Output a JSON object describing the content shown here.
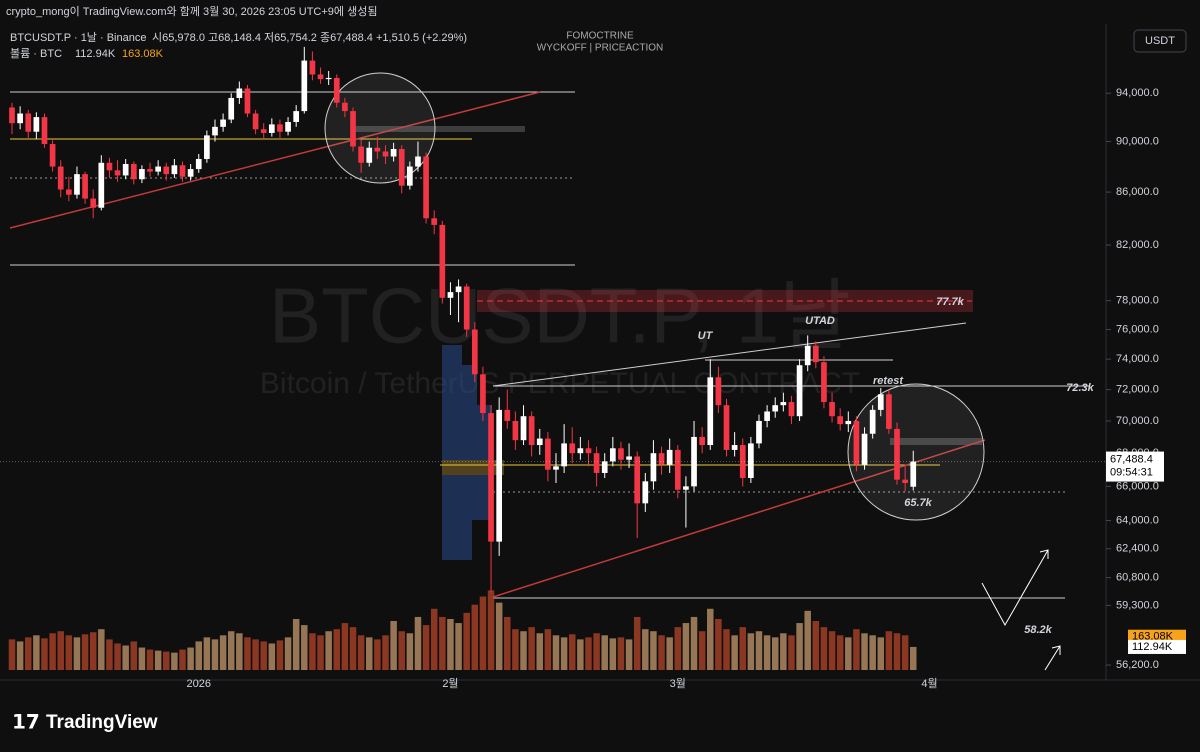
{
  "header": {
    "credit": "crypto_mong이 TradingView.com와 함께 3월 30, 2026 23:05 UTC+9에 생성됨",
    "symbol": "BTCUSDT.P · 1날 · Binance",
    "ohlc_text": "시65,978.0 고68,148.4 저65,754.2 종67,488.4 +1,510.5 (+2.29%)",
    "volume_title": "볼륨 · BTC",
    "volume_value": "112.94K",
    "volume_ma": "163.08K",
    "author_line1": "FOMOCTRINE",
    "author_line2": "WYCKOFF | PRICEACTION",
    "currency_button": "USDT"
  },
  "watermark": {
    "title": "BTCUSDT.P, 1날",
    "subtitle": "Bitcoin / TetherUS PERPETUAL CONTRACT"
  },
  "footer": {
    "logo": "TradingView"
  },
  "chart_data": {
    "type": "candlestick",
    "log_scale": true,
    "up_color": "#ffffff",
    "down_color": "#f23645",
    "volume_up_color": "#c49a6c",
    "volume_down_color": "#b5452a",
    "ylim": [
      55700,
      99500
    ],
    "xlim": [
      0,
      134
    ],
    "yticks": [
      {
        "value": 94000,
        "label": "94,000.0"
      },
      {
        "value": 90000,
        "label": "90,000.0"
      },
      {
        "value": 86000,
        "label": "86,000.0"
      },
      {
        "value": 82000,
        "label": "82,000.0"
      },
      {
        "value": 78000,
        "label": "78,000.0"
      },
      {
        "value": 76000,
        "label": "76,000.0"
      },
      {
        "value": 74000,
        "label": "74,000.0"
      },
      {
        "value": 72000,
        "label": "72,000.0"
      },
      {
        "value": 70000,
        "label": "70,000.0"
      },
      {
        "value": 68000,
        "label": "68,000.0"
      },
      {
        "value": 66000,
        "label": "66,000.0"
      },
      {
        "value": 64000,
        "label": "64,000.0"
      },
      {
        "value": 62400,
        "label": "62,400.0"
      },
      {
        "value": 60800,
        "label": "60,800.0"
      },
      {
        "value": 59300,
        "label": "59,300.0"
      },
      {
        "value": 56200,
        "label": "56,200.0"
      }
    ],
    "xticks": [
      {
        "value": 23,
        "label": "2026"
      },
      {
        "value": 54,
        "label": "2월"
      },
      {
        "value": 82,
        "label": "3월"
      },
      {
        "value": 113,
        "label": "4월"
      }
    ],
    "last_price": {
      "value": 67488.4,
      "label": "67,488.4"
    },
    "countdown": "09:54:31",
    "volume_ma_last": {
      "value": 163.08,
      "label": "163.08K"
    },
    "annotations": [
      "UT",
      "UTAD",
      "retest",
      "77.7k",
      "72.3k",
      "65.7k",
      "58.2k"
    ],
    "series": [
      {
        "name": "BTCUSDT.P",
        "values": [
          [
            92800,
            93200,
            90600,
            91500
          ],
          [
            91500,
            92900,
            91000,
            92300
          ],
          [
            92300,
            92600,
            90200,
            90800
          ],
          [
            90800,
            92400,
            90200,
            92000
          ],
          [
            92000,
            92300,
            89500,
            89800
          ],
          [
            89800,
            90100,
            87600,
            88000
          ],
          [
            88000,
            88500,
            85600,
            86200
          ],
          [
            86200,
            87200,
            85300,
            85800
          ],
          [
            85800,
            88000,
            85500,
            87400
          ],
          [
            87400,
            87600,
            85100,
            85500
          ],
          [
            85500,
            86200,
            84000,
            84800
          ],
          [
            84800,
            88900,
            84600,
            88300
          ],
          [
            88300,
            88700,
            87100,
            87700
          ],
          [
            87700,
            88500,
            86800,
            87300
          ],
          [
            87300,
            88600,
            87000,
            88200
          ],
          [
            88200,
            88400,
            86600,
            87000
          ],
          [
            87000,
            88100,
            86700,
            87800
          ],
          [
            87800,
            88300,
            87200,
            87600
          ],
          [
            87600,
            88500,
            87300,
            88000
          ],
          [
            88000,
            88300,
            86900,
            87400
          ],
          [
            87400,
            88600,
            87100,
            88100
          ],
          [
            88100,
            88400,
            86800,
            87200
          ],
          [
            87200,
            88200,
            86900,
            87800
          ],
          [
            87800,
            89000,
            87500,
            88600
          ],
          [
            88600,
            90900,
            88300,
            90500
          ],
          [
            90500,
            91800,
            90000,
            91200
          ],
          [
            91200,
            92300,
            90800,
            91800
          ],
          [
            91800,
            94000,
            91500,
            93600
          ],
          [
            93600,
            95000,
            93100,
            94400
          ],
          [
            94400,
            94700,
            92000,
            92300
          ],
          [
            92300,
            92600,
            90600,
            91000
          ],
          [
            91000,
            91500,
            90200,
            90700
          ],
          [
            90700,
            91900,
            90400,
            91400
          ],
          [
            91400,
            91800,
            90300,
            90800
          ],
          [
            90800,
            92000,
            90500,
            91600
          ],
          [
            91600,
            93000,
            91200,
            92500
          ],
          [
            92500,
            98000,
            92300,
            96800
          ],
          [
            96800,
            97600,
            95100,
            95600
          ],
          [
            95600,
            96200,
            94800,
            95200
          ],
          [
            95200,
            95900,
            94700,
            95300
          ],
          [
            95300,
            95600,
            92800,
            93200
          ],
          [
            93200,
            93600,
            92000,
            92500
          ],
          [
            92500,
            92800,
            89200,
            89600
          ],
          [
            89600,
            90200,
            87500,
            88300
          ],
          [
            88300,
            90000,
            88000,
            89500
          ],
          [
            89500,
            90400,
            88600,
            89200
          ],
          [
            89200,
            89700,
            88200,
            88800
          ],
          [
            88800,
            89900,
            88400,
            89400
          ],
          [
            89400,
            89700,
            85900,
            86500
          ],
          [
            86500,
            88400,
            86200,
            88000
          ],
          [
            88000,
            90000,
            87600,
            88800
          ],
          [
            88800,
            89100,
            83600,
            84000
          ],
          [
            84000,
            84600,
            82800,
            83500
          ],
          [
            83500,
            83800,
            77800,
            78200
          ],
          [
            78200,
            79300,
            77000,
            78600
          ],
          [
            78600,
            79500,
            76500,
            79000
          ],
          [
            79000,
            79200,
            75500,
            76000
          ],
          [
            76000,
            76500,
            72500,
            73000
          ],
          [
            73000,
            73500,
            70000,
            70500
          ],
          [
            70500,
            71000,
            60000,
            62800
          ],
          [
            62800,
            71500,
            62000,
            70700
          ],
          [
            70700,
            72000,
            69500,
            70000
          ],
          [
            70000,
            70600,
            68200,
            68800
          ],
          [
            68800,
            71000,
            68500,
            70300
          ],
          [
            70300,
            70600,
            67800,
            68500
          ],
          [
            68500,
            69500,
            67900,
            68900
          ],
          [
            68900,
            69300,
            66300,
            67000
          ],
          [
            67000,
            68000,
            66200,
            67200
          ],
          [
            67200,
            69800,
            66800,
            68600
          ],
          [
            68600,
            69600,
            67400,
            68000
          ],
          [
            68000,
            69000,
            67600,
            68300
          ],
          [
            68300,
            68800,
            67200,
            68000
          ],
          [
            68000,
            68400,
            66000,
            66800
          ],
          [
            66800,
            68000,
            66500,
            67500
          ],
          [
            67500,
            69000,
            67200,
            68300
          ],
          [
            68300,
            68700,
            67000,
            67600
          ],
          [
            67600,
            68600,
            67100,
            67800
          ],
          [
            67800,
            68100,
            63000,
            65000
          ],
          [
            65000,
            66800,
            64500,
            66300
          ],
          [
            66300,
            68800,
            65800,
            68000
          ],
          [
            68000,
            68400,
            66700,
            67300
          ],
          [
            67300,
            68900,
            66800,
            68200
          ],
          [
            68200,
            68500,
            65300,
            65800
          ],
          [
            65800,
            66600,
            63600,
            66000
          ],
          [
            66000,
            70000,
            65700,
            69000
          ],
          [
            69000,
            69600,
            68000,
            68500
          ],
          [
            68500,
            74000,
            68200,
            72800
          ],
          [
            72800,
            73500,
            70500,
            71000
          ],
          [
            71000,
            71400,
            67800,
            68200
          ],
          [
            68200,
            69300,
            67800,
            68500
          ],
          [
            68500,
            68900,
            66000,
            66500
          ],
          [
            66500,
            69000,
            66200,
            68600
          ],
          [
            68600,
            70400,
            68300,
            70000
          ],
          [
            70000,
            71000,
            69600,
            70600
          ],
          [
            70600,
            71500,
            70200,
            71000
          ],
          [
            71000,
            71800,
            70600,
            71200
          ],
          [
            71200,
            71600,
            69800,
            70300
          ],
          [
            70300,
            74000,
            70000,
            73600
          ],
          [
            73600,
            75600,
            73200,
            74900
          ],
          [
            74900,
            75200,
            73400,
            73800
          ],
          [
            73800,
            74200,
            70800,
            71200
          ],
          [
            71200,
            71800,
            69900,
            70300
          ],
          [
            70300,
            70800,
            69400,
            69800
          ],
          [
            69800,
            70600,
            69300,
            70000
          ],
          [
            70000,
            70300,
            66900,
            67300
          ],
          [
            67300,
            69600,
            67000,
            69200
          ],
          [
            69200,
            71000,
            68900,
            70700
          ],
          [
            70700,
            72100,
            70300,
            71700
          ],
          [
            71700,
            72000,
            69200,
            69500
          ],
          [
            69500,
            69900,
            66100,
            66400
          ],
          [
            66400,
            67300,
            65700,
            66200
          ],
          [
            65978.0,
            68148.4,
            65754.2,
            67488.4
          ]
        ],
        "volume": [
          150,
          140,
          160,
          170,
          155,
          180,
          190,
          170,
          160,
          175,
          185,
          200,
          150,
          130,
          120,
          140,
          110,
          100,
          95,
          90,
          85,
          100,
          110,
          140,
          160,
          150,
          170,
          190,
          180,
          160,
          150,
          140,
          130,
          145,
          160,
          250,
          220,
          180,
          170,
          190,
          200,
          230,
          210,
          170,
          160,
          150,
          170,
          240,
          190,
          180,
          260,
          220,
          300,
          260,
          250,
          230,
          280,
          320,
          360,
          390,
          330,
          260,
          200,
          190,
          210,
          180,
          200,
          170,
          160,
          175,
          150,
          160,
          180,
          170,
          155,
          160,
          150,
          260,
          200,
          190,
          170,
          160,
          210,
          230,
          260,
          190,
          300,
          250,
          200,
          170,
          210,
          180,
          190,
          170,
          160,
          180,
          170,
          230,
          290,
          240,
          210,
          190,
          170,
          160,
          200,
          180,
          170,
          160,
          190,
          180,
          170,
          112.94
        ]
      }
    ]
  }
}
